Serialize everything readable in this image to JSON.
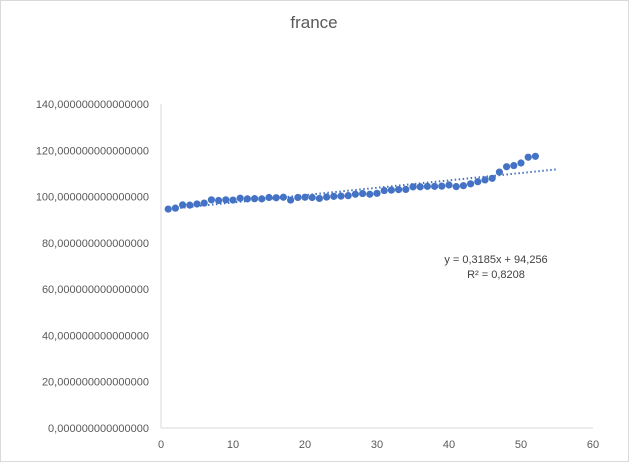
{
  "chart_data": {
    "type": "scatter",
    "title": "france",
    "xlabel": "",
    "ylabel": "",
    "xlim": [
      0,
      60
    ],
    "ylim": [
      0,
      140
    ],
    "x_ticks": [
      "0",
      "10",
      "20",
      "30",
      "40",
      "50",
      "60"
    ],
    "y_ticks": [
      "0,000000000000000",
      "20,000000000000000",
      "40,000000000000000",
      "60,000000000000000",
      "80,000000000000000",
      "100,000000000000000",
      "120,000000000000000",
      "140,000000000000000"
    ],
    "grid": false,
    "marker_color": "#4472C4",
    "series": [
      {
        "x": [
          1,
          2,
          3,
          4,
          5,
          6,
          7,
          8,
          9,
          10,
          11,
          12,
          13,
          14,
          15,
          16,
          17,
          18,
          19,
          20,
          21,
          22,
          23,
          24,
          25,
          26,
          27,
          28,
          29,
          30,
          31,
          32,
          33,
          34,
          35,
          36,
          37,
          38,
          39,
          40,
          41,
          42,
          43,
          44,
          45,
          46,
          47,
          48,
          49,
          50,
          51,
          52
        ],
        "y": [
          94.6,
          95.0,
          96.4,
          96.3,
          96.8,
          97.2,
          98.6,
          98.3,
          98.6,
          98.5,
          99.3,
          99.0,
          99.1,
          99.0,
          99.6,
          99.5,
          99.7,
          98.5,
          99.6,
          99.7,
          99.6,
          99.2,
          99.8,
          100.1,
          100.2,
          100.4,
          101.0,
          101.3,
          101.0,
          101.4,
          102.6,
          102.8,
          103.0,
          103.1,
          104.2,
          104.2,
          104.4,
          104.4,
          104.5,
          105.0,
          104.3,
          104.7,
          105.5,
          106.4,
          107.2,
          107.9,
          110.6,
          112.9,
          113.4,
          114.5,
          117.0,
          117.4
        ]
      }
    ],
    "trendline": {
      "type": "linear",
      "slope": 0.3185,
      "intercept": 94.256,
      "x_range": [
        1,
        55
      ],
      "equation_text": "y = 0,3185x + 94,256",
      "r2_text": "R² = 0,8208"
    }
  }
}
